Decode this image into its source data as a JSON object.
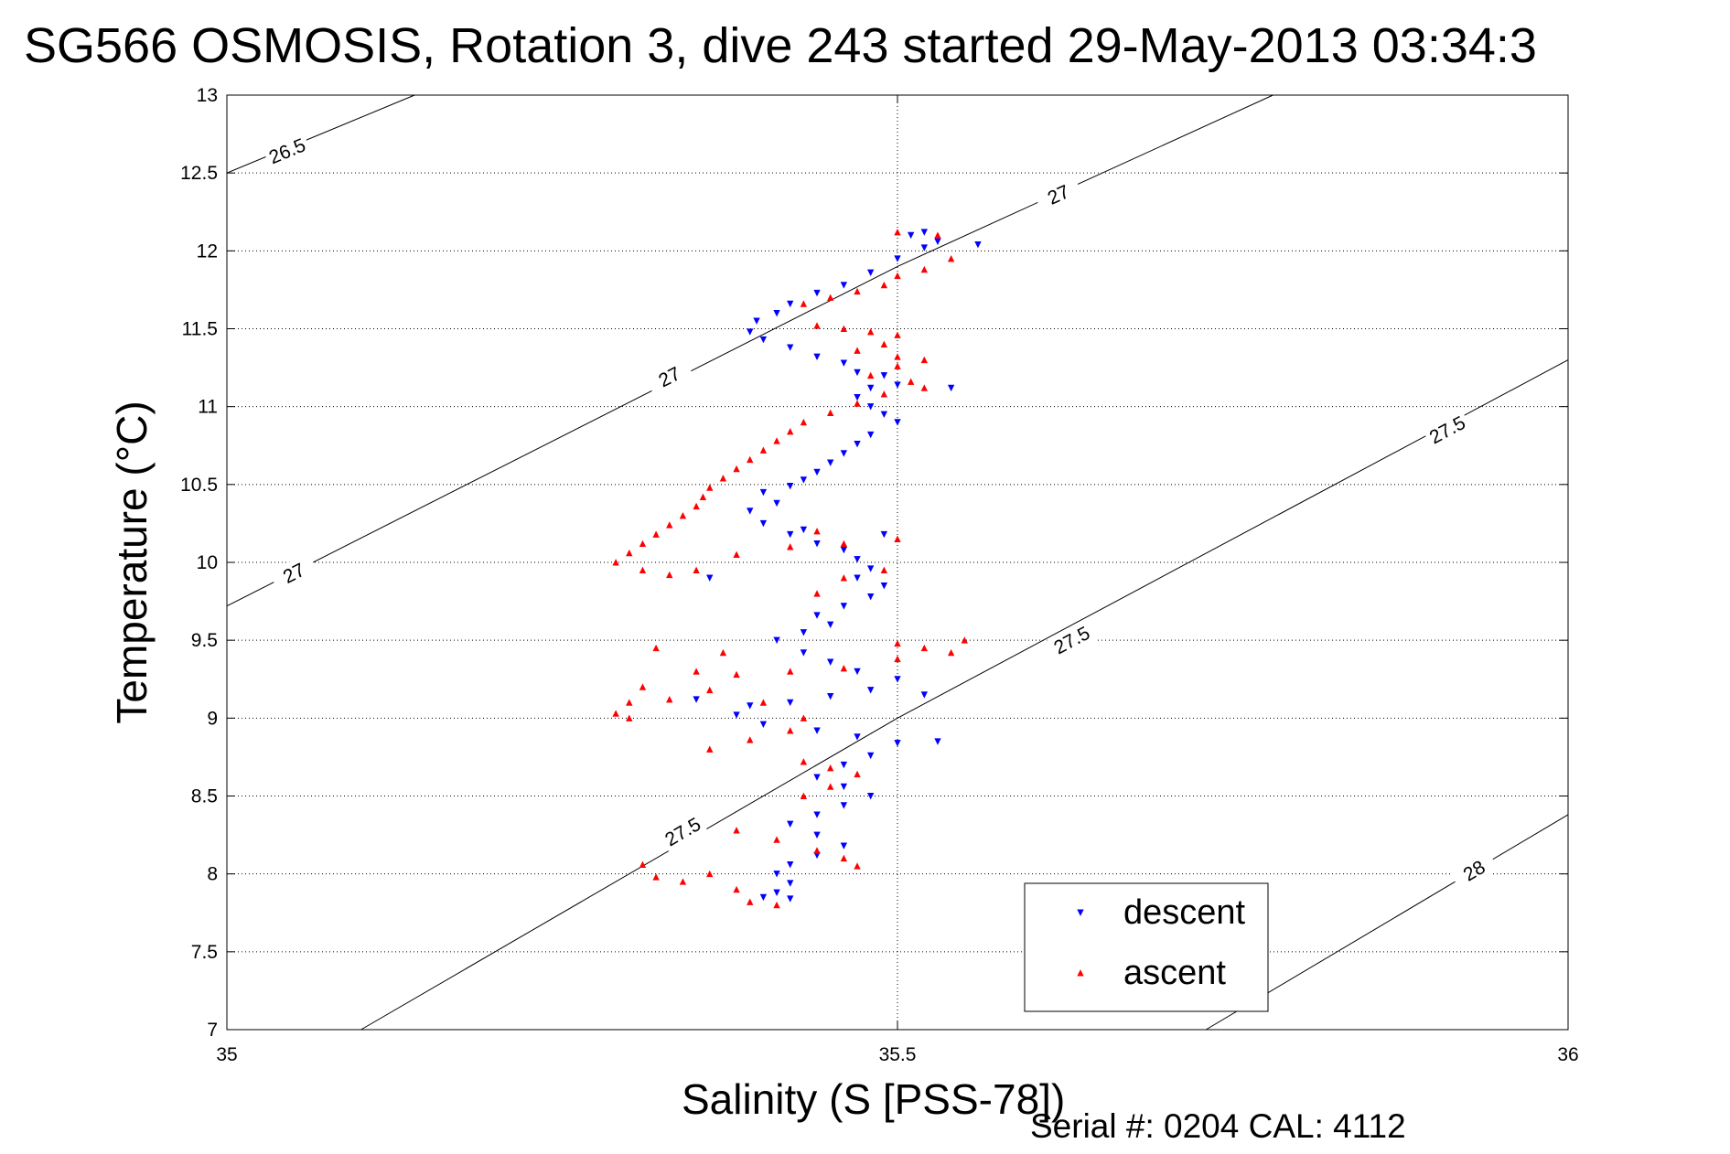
{
  "chart_data": {
    "type": "scatter",
    "title": "SG566 OSMOSIS, Rotation 3, dive 243 started 29-May-2013 03:34:3",
    "xlabel": "Salinity (S [PSS-78])",
    "ylabel": "Temperature (°C)",
    "xlim": [
      35,
      36
    ],
    "ylim": [
      7,
      13
    ],
    "grid": true,
    "legend_position": "bottom-right",
    "footer": "Serial #: 0204  CAL: 4112",
    "x_ticks": [
      "35",
      "35.5",
      "36"
    ],
    "y_ticks": [
      "7",
      "7.5",
      "8",
      "8.5",
      "9",
      "9.5",
      "10",
      "10.5",
      "11",
      "11.5",
      "12",
      "12.5",
      "13"
    ],
    "density_contours": [
      {
        "label": "26.5",
        "points": [
          [
            35,
            12.5
          ],
          [
            35.14,
            13.0
          ]
        ],
        "labels_at": [
          [
            35.045,
            12.64
          ]
        ]
      },
      {
        "label": "27",
        "points": [
          [
            35,
            9.72
          ],
          [
            35.5,
            11.9
          ],
          [
            35.78,
            13.0
          ]
        ],
        "labels_at": [
          [
            35.05,
            9.93
          ],
          [
            35.33,
            11.19
          ],
          [
            35.62,
            12.36
          ]
        ]
      },
      {
        "label": "27.5",
        "points": [
          [
            35.1,
            7.0
          ],
          [
            35.5,
            9.0
          ],
          [
            36.0,
            11.3
          ]
        ],
        "labels_at": [
          [
            35.34,
            8.27
          ],
          [
            35.63,
            9.5
          ],
          [
            35.91,
            10.85
          ]
        ]
      },
      {
        "label": "28",
        "points": [
          [
            35.73,
            7.0
          ],
          [
            36.0,
            8.38
          ]
        ],
        "labels_at": [
          [
            35.93,
            8.02
          ]
        ]
      }
    ],
    "series": [
      {
        "name": "descent",
        "color": "#0000ff",
        "marker": "triangle-down",
        "points": [
          [
            35.52,
            12.12
          ],
          [
            35.51,
            12.1
          ],
          [
            35.53,
            12.06
          ],
          [
            35.52,
            12.02
          ],
          [
            35.5,
            11.95
          ],
          [
            35.48,
            11.86
          ],
          [
            35.46,
            11.78
          ],
          [
            35.44,
            11.73
          ],
          [
            35.42,
            11.66
          ],
          [
            35.41,
            11.6
          ],
          [
            35.395,
            11.55
          ],
          [
            35.39,
            11.48
          ],
          [
            35.4,
            11.43
          ],
          [
            35.42,
            11.38
          ],
          [
            35.44,
            11.32
          ],
          [
            35.46,
            11.28
          ],
          [
            35.47,
            11.22
          ],
          [
            35.49,
            11.2
          ],
          [
            35.5,
            11.14
          ],
          [
            35.48,
            11.12
          ],
          [
            35.47,
            11.06
          ],
          [
            35.48,
            11.0
          ],
          [
            35.49,
            10.95
          ],
          [
            35.5,
            10.9
          ],
          [
            35.48,
            10.82
          ],
          [
            35.47,
            10.76
          ],
          [
            35.46,
            10.7
          ],
          [
            35.45,
            10.64
          ],
          [
            35.44,
            10.58
          ],
          [
            35.43,
            10.53
          ],
          [
            35.42,
            10.49
          ],
          [
            35.4,
            10.45
          ],
          [
            35.41,
            10.38
          ],
          [
            35.39,
            10.33
          ],
          [
            35.4,
            10.25
          ],
          [
            35.42,
            10.18
          ],
          [
            35.44,
            10.12
          ],
          [
            35.46,
            10.08
          ],
          [
            35.47,
            10.02
          ],
          [
            35.48,
            9.96
          ],
          [
            35.47,
            9.9
          ],
          [
            35.49,
            9.85
          ],
          [
            35.48,
            9.78
          ],
          [
            35.46,
            9.72
          ],
          [
            35.44,
            9.66
          ],
          [
            35.45,
            9.6
          ],
          [
            35.43,
            9.55
          ],
          [
            35.41,
            9.5
          ],
          [
            35.43,
            9.42
          ],
          [
            35.45,
            9.36
          ],
          [
            35.47,
            9.3
          ],
          [
            35.5,
            9.25
          ],
          [
            35.48,
            9.18
          ],
          [
            35.45,
            9.14
          ],
          [
            35.42,
            9.1
          ],
          [
            35.39,
            9.08
          ],
          [
            35.38,
            9.02
          ],
          [
            35.4,
            8.96
          ],
          [
            35.44,
            8.92
          ],
          [
            35.47,
            8.88
          ],
          [
            35.5,
            8.84
          ],
          [
            35.48,
            8.76
          ],
          [
            35.46,
            8.7
          ],
          [
            35.44,
            8.62
          ],
          [
            35.46,
            8.56
          ],
          [
            35.48,
            8.5
          ],
          [
            35.46,
            8.44
          ],
          [
            35.44,
            8.38
          ],
          [
            35.42,
            8.32
          ],
          [
            35.44,
            8.25
          ],
          [
            35.46,
            8.18
          ],
          [
            35.44,
            8.12
          ],
          [
            35.42,
            8.06
          ],
          [
            35.41,
            8.0
          ],
          [
            35.42,
            7.94
          ],
          [
            35.41,
            7.88
          ],
          [
            35.4,
            7.85
          ],
          [
            35.42,
            7.84
          ],
          [
            35.56,
            12.04
          ],
          [
            35.54,
            11.12
          ],
          [
            35.52,
            9.15
          ],
          [
            35.53,
            8.85
          ],
          [
            35.35,
            9.12
          ],
          [
            35.36,
            9.9
          ],
          [
            35.49,
            10.18
          ],
          [
            35.43,
            10.21
          ]
        ]
      },
      {
        "name": "ascent",
        "color": "#ff0000",
        "marker": "triangle-up",
        "points": [
          [
            35.5,
            12.12
          ],
          [
            35.53,
            12.1
          ],
          [
            35.54,
            11.95
          ],
          [
            35.52,
            11.88
          ],
          [
            35.5,
            11.84
          ],
          [
            35.49,
            11.78
          ],
          [
            35.47,
            11.74
          ],
          [
            35.45,
            11.7
          ],
          [
            35.43,
            11.66
          ],
          [
            35.44,
            11.52
          ],
          [
            35.46,
            11.5
          ],
          [
            35.48,
            11.48
          ],
          [
            35.5,
            11.46
          ],
          [
            35.49,
            11.4
          ],
          [
            35.47,
            11.36
          ],
          [
            35.5,
            11.32
          ],
          [
            35.52,
            11.3
          ],
          [
            35.5,
            11.26
          ],
          [
            35.48,
            11.2
          ],
          [
            35.51,
            11.16
          ],
          [
            35.52,
            11.12
          ],
          [
            35.49,
            11.08
          ],
          [
            35.47,
            11.02
          ],
          [
            35.45,
            10.96
          ],
          [
            35.43,
            10.9
          ],
          [
            35.42,
            10.84
          ],
          [
            35.41,
            10.78
          ],
          [
            35.4,
            10.72
          ],
          [
            35.39,
            10.66
          ],
          [
            35.38,
            10.6
          ],
          [
            35.37,
            10.54
          ],
          [
            35.36,
            10.48
          ],
          [
            35.355,
            10.42
          ],
          [
            35.35,
            10.36
          ],
          [
            35.34,
            10.3
          ],
          [
            35.33,
            10.24
          ],
          [
            35.32,
            10.18
          ],
          [
            35.31,
            10.12
          ],
          [
            35.3,
            10.06
          ],
          [
            35.29,
            10.0
          ],
          [
            35.31,
            9.95
          ],
          [
            35.33,
            9.92
          ],
          [
            35.35,
            9.95
          ],
          [
            35.38,
            10.05
          ],
          [
            35.42,
            10.1
          ],
          [
            35.46,
            10.12
          ],
          [
            35.5,
            10.15
          ],
          [
            35.49,
            9.95
          ],
          [
            35.46,
            9.9
          ],
          [
            35.44,
            9.8
          ],
          [
            35.5,
            9.48
          ],
          [
            35.52,
            9.45
          ],
          [
            35.54,
            9.42
          ],
          [
            35.55,
            9.5
          ],
          [
            35.5,
            9.38
          ],
          [
            35.46,
            9.32
          ],
          [
            35.42,
            9.3
          ],
          [
            35.38,
            9.28
          ],
          [
            35.35,
            9.3
          ],
          [
            35.32,
            9.45
          ],
          [
            35.31,
            9.2
          ],
          [
            35.3,
            9.1
          ],
          [
            35.29,
            9.03
          ],
          [
            35.3,
            9.0
          ],
          [
            35.33,
            9.12
          ],
          [
            35.36,
            9.18
          ],
          [
            35.4,
            9.1
          ],
          [
            35.43,
            9.0
          ],
          [
            35.42,
            8.92
          ],
          [
            35.39,
            8.86
          ],
          [
            35.36,
            8.8
          ],
          [
            35.43,
            8.72
          ],
          [
            35.45,
            8.68
          ],
          [
            35.47,
            8.64
          ],
          [
            35.45,
            8.56
          ],
          [
            35.43,
            8.5
          ],
          [
            35.38,
            8.28
          ],
          [
            35.41,
            8.22
          ],
          [
            35.44,
            8.15
          ],
          [
            35.46,
            8.1
          ],
          [
            35.47,
            8.05
          ],
          [
            35.31,
            8.06
          ],
          [
            35.32,
            7.98
          ],
          [
            35.34,
            7.95
          ],
          [
            35.36,
            8.0
          ],
          [
            35.38,
            7.9
          ],
          [
            35.39,
            7.82
          ],
          [
            35.41,
            7.8
          ],
          [
            35.37,
            9.42
          ],
          [
            35.44,
            10.2
          ]
        ]
      }
    ]
  }
}
